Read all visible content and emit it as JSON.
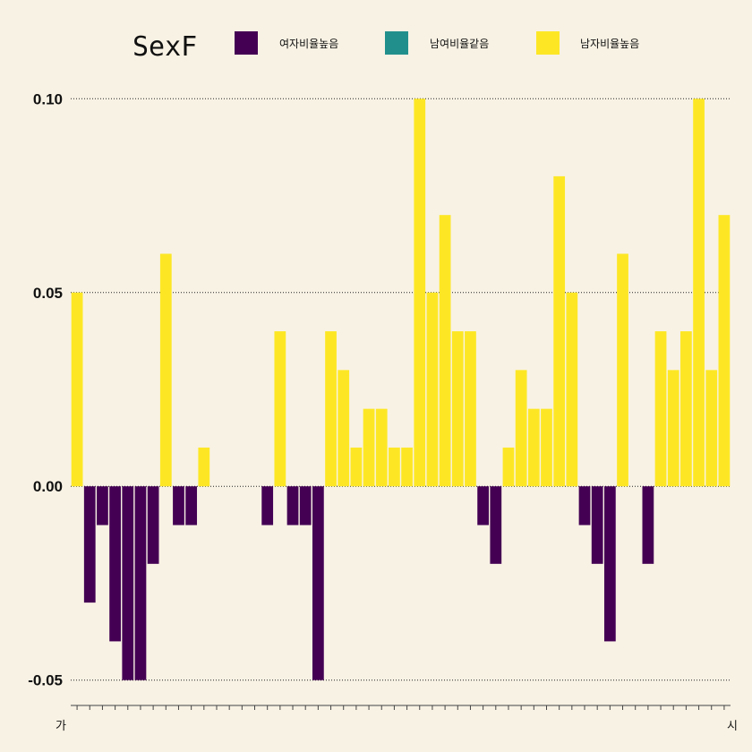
{
  "chart_data": {
    "type": "bar",
    "legend": {
      "title": "SexF",
      "position": "top",
      "entries": [
        {
          "label": "여자비율높음",
          "color": "#440154"
        },
        {
          "label": "남여비율같음",
          "color": "#21908c"
        },
        {
          "label": "남자비율높음",
          "color": "#fde725"
        }
      ]
    },
    "xlabel": "",
    "ylabel": "",
    "ylim": [
      -0.057,
      0.107
    ],
    "y_ticks": [
      "0.10",
      "0.05",
      "0.00",
      "-0.05"
    ],
    "y_tick_values": [
      0.1,
      0.05,
      0.0,
      -0.05
    ],
    "grid": "horizontal dotted",
    "first_category": "가",
    "last_category": "시",
    "values": [
      0.05,
      -0.03,
      -0.01,
      -0.04,
      -0.05,
      -0.05,
      -0.02,
      0.06,
      -0.01,
      -0.01,
      0.01,
      0,
      0,
      0,
      0,
      -0.01,
      0.04,
      -0.01,
      -0.01,
      -0.05,
      0.04,
      0.03,
      0.01,
      0.02,
      0.02,
      0.01,
      0.01,
      0.1,
      0.05,
      0.07,
      0.04,
      0.04,
      -0.01,
      -0.02,
      0.01,
      0.03,
      0.02,
      0.02,
      0.08,
      0.05,
      -0.01,
      -0.02,
      -0.04,
      0.06,
      0,
      -0.02,
      0.04,
      0.03,
      0.04,
      0.1,
      0.03,
      0.07
    ],
    "colors": {
      "negative": "#440154",
      "zero": "#21908c",
      "positive": "#fde725",
      "background": "#f8f2e4"
    }
  }
}
